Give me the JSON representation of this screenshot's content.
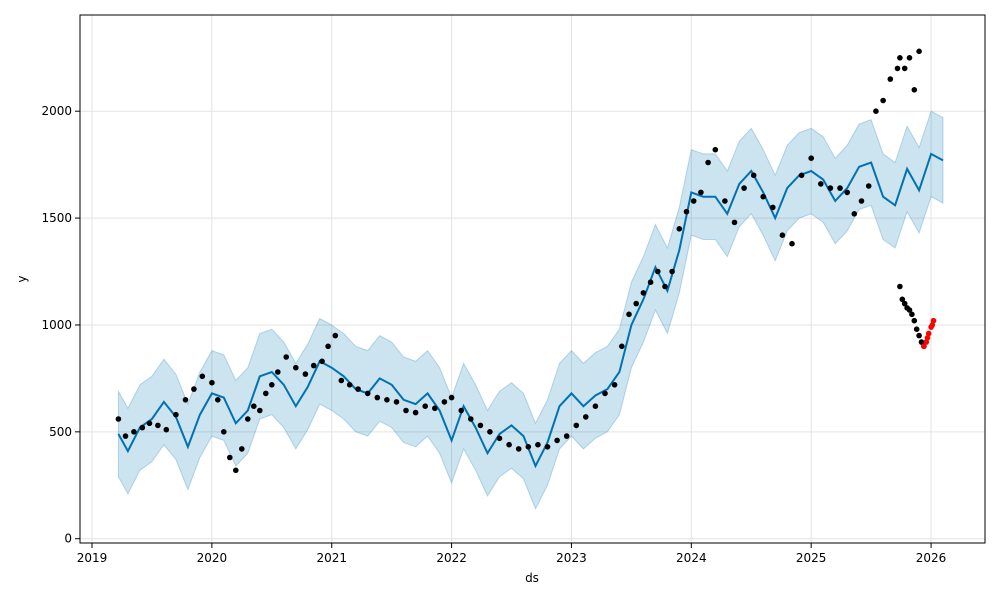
{
  "chart_data": {
    "type": "line",
    "title": "",
    "xlabel": "ds",
    "ylabel": "y",
    "x_ticks": [
      "2019",
      "2020",
      "2021",
      "2022",
      "2023",
      "2024",
      "2025",
      "2026"
    ],
    "y_ticks": [
      "0",
      "500",
      "1000",
      "1500",
      "2000"
    ],
    "xlim": [
      2018.9,
      2026.45
    ],
    "ylim": [
      -20,
      2450
    ],
    "grid": true,
    "colors": {
      "observed": "#000000",
      "recent_observed": "#ff0000",
      "forecast_line": "#0072b2",
      "uncertainty_band": "#0072b2"
    },
    "forecast": {
      "x": [
        2019.22,
        2019.3,
        2019.4,
        2019.5,
        2019.6,
        2019.7,
        2019.8,
        2019.9,
        2020.0,
        2020.1,
        2020.2,
        2020.3,
        2020.4,
        2020.5,
        2020.6,
        2020.7,
        2020.8,
        2020.9,
        2021.0,
        2021.1,
        2021.2,
        2021.3,
        2021.4,
        2021.5,
        2021.6,
        2021.7,
        2021.8,
        2021.9,
        2022.0,
        2022.1,
        2022.2,
        2022.3,
        2022.4,
        2022.5,
        2022.6,
        2022.7,
        2022.8,
        2022.9,
        2023.0,
        2023.1,
        2023.2,
        2023.3,
        2023.4,
        2023.5,
        2023.6,
        2023.7,
        2023.8,
        2023.9,
        2024.0,
        2024.1,
        2024.2,
        2024.3,
        2024.4,
        2024.5,
        2024.6,
        2024.7,
        2024.8,
        2024.9,
        2025.0,
        2025.1,
        2025.2,
        2025.3,
        2025.4,
        2025.5,
        2025.6,
        2025.7,
        2025.8,
        2025.9,
        2026.0,
        2026.1
      ],
      "yhat": [
        490,
        410,
        520,
        560,
        640,
        570,
        430,
        580,
        680,
        660,
        540,
        600,
        760,
        780,
        720,
        620,
        710,
        830,
        800,
        760,
        700,
        680,
        750,
        720,
        650,
        630,
        680,
        600,
        460,
        620,
        520,
        400,
        490,
        530,
        480,
        340,
        450,
        620,
        680,
        620,
        670,
        700,
        780,
        1000,
        1120,
        1270,
        1160,
        1350,
        1620,
        1600,
        1600,
        1520,
        1660,
        1720,
        1620,
        1500,
        1640,
        1700,
        1720,
        1680,
        1580,
        1640,
        1740,
        1760,
        1600,
        1560,
        1730,
        1630,
        1800,
        1770
      ],
      "yhat_lower": [
        290,
        210,
        320,
        360,
        440,
        370,
        230,
        380,
        480,
        460,
        340,
        400,
        560,
        580,
        520,
        420,
        510,
        630,
        600,
        560,
        500,
        480,
        550,
        520,
        450,
        430,
        480,
        400,
        260,
        420,
        320,
        200,
        290,
        330,
        280,
        140,
        250,
        420,
        480,
        420,
        470,
        500,
        580,
        800,
        920,
        1070,
        960,
        1150,
        1420,
        1400,
        1400,
        1320,
        1460,
        1520,
        1420,
        1300,
        1440,
        1500,
        1520,
        1480,
        1380,
        1440,
        1540,
        1560,
        1400,
        1360,
        1530,
        1430,
        1600,
        1570
      ],
      "yhat_upper": [
        690,
        610,
        720,
        760,
        840,
        770,
        630,
        780,
        880,
        860,
        740,
        800,
        960,
        980,
        920,
        820,
        910,
        1030,
        1000,
        960,
        900,
        880,
        950,
        920,
        850,
        830,
        880,
        800,
        660,
        820,
        720,
        600,
        690,
        730,
        680,
        540,
        650,
        820,
        880,
        820,
        870,
        900,
        980,
        1200,
        1320,
        1470,
        1360,
        1550,
        1820,
        1800,
        1800,
        1720,
        1860,
        1920,
        1820,
        1700,
        1840,
        1900,
        1920,
        1880,
        1780,
        1840,
        1940,
        1960,
        1800,
        1760,
        1930,
        1830,
        2000,
        1970
      ]
    },
    "observed": {
      "x": [
        2019.22,
        2019.28,
        2019.35,
        2019.42,
        2019.48,
        2019.55,
        2019.62,
        2019.7,
        2019.78,
        2019.85,
        2019.92,
        2020.0,
        2020.05,
        2020.1,
        2020.15,
        2020.2,
        2020.25,
        2020.3,
        2020.35,
        2020.4,
        2020.45,
        2020.5,
        2020.55,
        2020.62,
        2020.7,
        2020.78,
        2020.85,
        2020.92,
        2020.97,
        2021.03,
        2021.08,
        2021.15,
        2021.22,
        2021.3,
        2021.38,
        2021.46,
        2021.54,
        2021.62,
        2021.7,
        2021.78,
        2021.86,
        2021.94,
        2022.0,
        2022.08,
        2022.16,
        2022.24,
        2022.32,
        2022.4,
        2022.48,
        2022.56,
        2022.64,
        2022.72,
        2022.8,
        2022.88,
        2022.96,
        2023.04,
        2023.12,
        2023.2,
        2023.28,
        2023.36,
        2023.42,
        2023.48,
        2023.54,
        2023.6,
        2023.66,
        2023.72,
        2023.78,
        2023.84,
        2023.9,
        2023.96,
        2024.02,
        2024.08,
        2024.14,
        2024.2,
        2024.28,
        2024.36,
        2024.44,
        2024.52,
        2024.6,
        2024.68,
        2024.76,
        2024.84,
        2024.92,
        2025.0,
        2025.08,
        2025.16,
        2025.24,
        2025.3,
        2025.36,
        2025.42,
        2025.48,
        2025.54,
        2025.6,
        2025.66,
        2025.72,
        2025.74,
        2025.78,
        2025.82,
        2025.86,
        2025.9
      ],
      "y": [
        560,
        480,
        500,
        520,
        540,
        530,
        510,
        580,
        650,
        700,
        760,
        730,
        650,
        500,
        380,
        320,
        420,
        560,
        620,
        600,
        680,
        720,
        780,
        850,
        800,
        770,
        810,
        830,
        900,
        950,
        740,
        720,
        700,
        680,
        660,
        650,
        640,
        600,
        590,
        620,
        610,
        640,
        660,
        600,
        560,
        530,
        500,
        470,
        440,
        420,
        430,
        440,
        430,
        460,
        480,
        530,
        570,
        620,
        680,
        720,
        900,
        1050,
        1100,
        1150,
        1200,
        1250,
        1180,
        1250,
        1450,
        1530,
        1580,
        1620,
        1760,
        1820,
        1580,
        1480,
        1640,
        1700,
        1600,
        1550,
        1420,
        1380,
        1700,
        1780,
        1660,
        1640,
        1640,
        1620,
        1520,
        1580,
        1650,
        2000,
        2050,
        2150,
        2200,
        2250,
        2200,
        2250,
        2100,
        2280
      ]
    },
    "observed_recent": {
      "x": [
        2025.74,
        2025.76,
        2025.78,
        2025.8,
        2025.82,
        2025.84,
        2025.86,
        2025.88,
        2025.9,
        2025.92,
        2025.94
      ],
      "y": [
        1180,
        1120,
        1100,
        1080,
        1070,
        1050,
        1020,
        980,
        950,
        920,
        900
      ]
    },
    "recent_red": {
      "x": [
        2025.94,
        2025.96,
        2025.97,
        2025.98,
        2026.0,
        2026.01,
        2026.02
      ],
      "y": [
        900,
        920,
        940,
        960,
        990,
        1000,
        1020
      ]
    }
  }
}
